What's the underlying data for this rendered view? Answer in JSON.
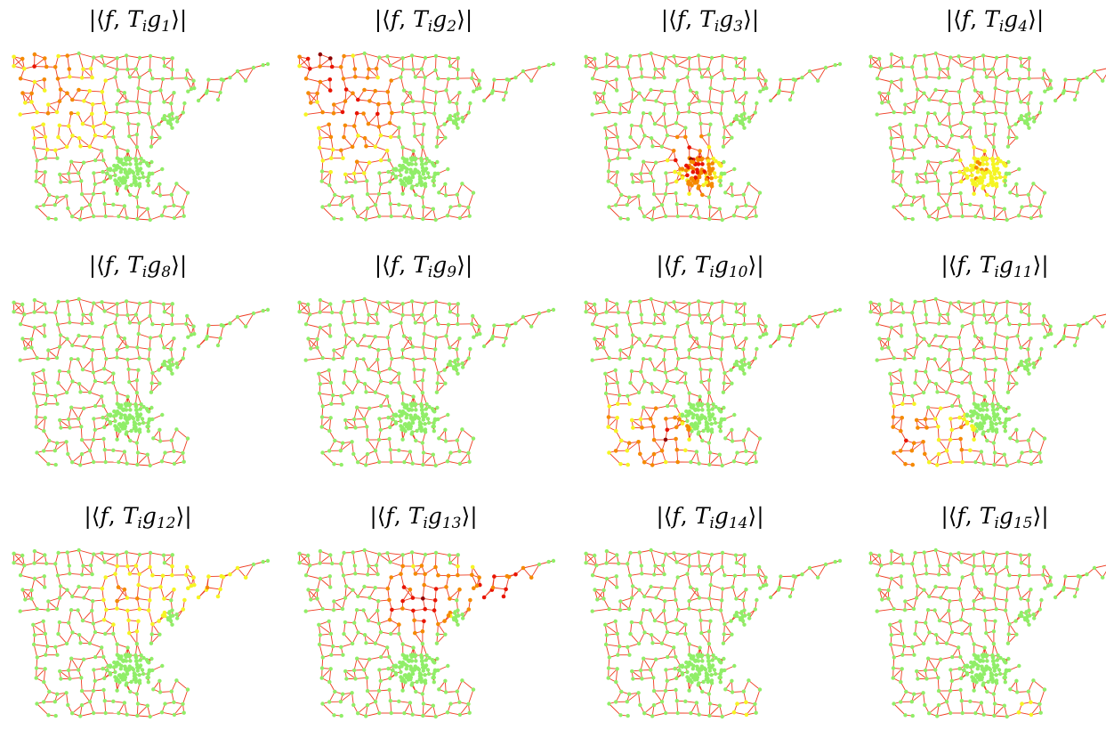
{
  "figure": {
    "panels": [
      {
        "title": {
          "prefix": "|⟨",
          "f": "f",
          "comma": ", ",
          "T": "T",
          "i": "i",
          "g": "g",
          "sub": "1",
          "suffix": "⟩|"
        },
        "hotspots": [
          {
            "region": "northwest-border",
            "intensity": 0.8
          },
          {
            "region": "northwest-inner",
            "intensity": 0.45
          }
        ]
      },
      {
        "title": {
          "prefix": "|⟨",
          "f": "f",
          "comma": ", ",
          "T": "T",
          "i": "i",
          "g": "g",
          "sub": "2",
          "suffix": "⟩|"
        },
        "hotspots": [
          {
            "region": "northwest-border",
            "intensity": 1.0
          },
          {
            "region": "northwest-inner",
            "intensity": 0.85
          },
          {
            "region": "west-central",
            "intensity": 0.5
          }
        ]
      },
      {
        "title": {
          "prefix": "|⟨",
          "f": "f",
          "comma": ", ",
          "T": "T",
          "i": "i",
          "g": "g",
          "sub": "3",
          "suffix": "⟩|"
        },
        "hotspots": [
          {
            "region": "metro-north",
            "intensity": 1.0
          },
          {
            "region": "metro-core",
            "intensity": 0.75
          }
        ]
      },
      {
        "title": {
          "prefix": "|⟨",
          "f": "f",
          "comma": ", ",
          "T": "T",
          "i": "i",
          "g": "g",
          "sub": "4",
          "suffix": "⟩|"
        },
        "hotspots": [
          {
            "region": "metro-core",
            "intensity": 0.4
          }
        ]
      },
      {
        "title": {
          "prefix": "|⟨",
          "f": "f",
          "comma": ", ",
          "T": "T",
          "i": "i",
          "g": "g",
          "sub": "8",
          "suffix": "⟩|"
        },
        "hotspots": []
      },
      {
        "title": {
          "prefix": "|⟨",
          "f": "f",
          "comma": ", ",
          "T": "T",
          "i": "i",
          "g": "g",
          "sub": "9",
          "suffix": "⟩|"
        },
        "hotspots": []
      },
      {
        "title": {
          "prefix": "|⟨",
          "f": "f",
          "comma": ", ",
          "T": "T",
          "i": "i",
          "g": "g",
          "sub": "10",
          "suffix": "⟩|"
        },
        "hotspots": [
          {
            "region": "south-central",
            "intensity": 1.0
          },
          {
            "region": "southwest",
            "intensity": 0.5
          }
        ]
      },
      {
        "title": {
          "prefix": "|⟨",
          "f": "f",
          "comma": ", ",
          "T": "T",
          "i": "i",
          "g": "g",
          "sub": "11",
          "suffix": "⟩|"
        },
        "hotspots": [
          {
            "region": "southwest",
            "intensity": 0.75
          },
          {
            "region": "south-central",
            "intensity": 0.5
          }
        ]
      },
      {
        "title": {
          "prefix": "|⟨",
          "f": "f",
          "comma": ", ",
          "T": "T",
          "i": "i",
          "g": "g",
          "sub": "12",
          "suffix": "⟩|"
        },
        "hotspots": [
          {
            "region": "northeast-inner",
            "intensity": 0.5
          },
          {
            "region": "arrowhead",
            "intensity": 0.4
          }
        ]
      },
      {
        "title": {
          "prefix": "|⟨",
          "f": "f",
          "comma": ", ",
          "T": "T",
          "i": "i",
          "g": "g",
          "sub": "13",
          "suffix": "⟩|"
        },
        "hotspots": [
          {
            "region": "northeast-inner",
            "intensity": 1.0
          },
          {
            "region": "arrowhead",
            "intensity": 0.85
          }
        ]
      },
      {
        "title": {
          "prefix": "|⟨",
          "f": "f",
          "comma": ", ",
          "T": "T",
          "i": "i",
          "g": "g",
          "sub": "14",
          "suffix": "⟩|"
        },
        "hotspots": [
          {
            "region": "southeast-tip",
            "intensity": 0.3
          }
        ]
      },
      {
        "title": {
          "prefix": "|⟨",
          "f": "f",
          "comma": ", ",
          "T": "T",
          "i": "i",
          "g": "g",
          "sub": "15",
          "suffix": "⟩|"
        },
        "hotspots": [
          {
            "region": "southeast-tip",
            "intensity": 0.35
          }
        ]
      }
    ],
    "colors": {
      "node_low": "#90ee68",
      "edge": "#ee3a1f",
      "scale_yellow": "#f5f523",
      "scale_orange": "#f58a00",
      "scale_red": "#e81400",
      "scale_darkred": "#8c0000"
    }
  }
}
